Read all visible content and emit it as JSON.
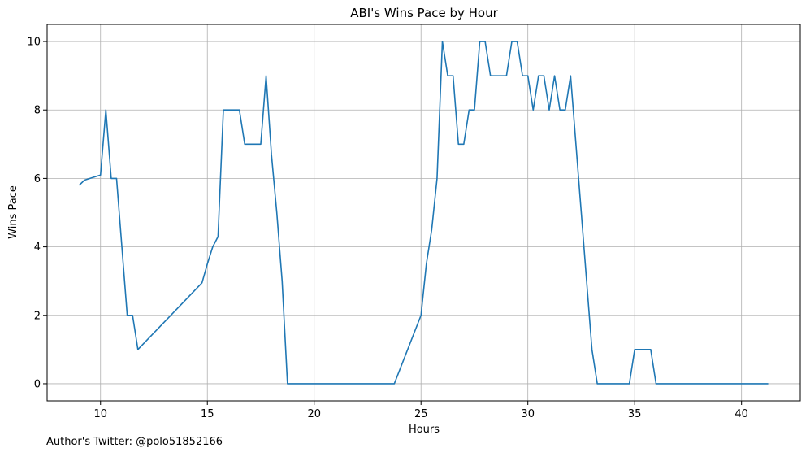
{
  "chart_data": {
    "type": "line",
    "title": "ABI's Wins Pace by Hour",
    "xlabel": "Hours",
    "ylabel": "Wins Pace",
    "xlim": [
      7.5,
      42.75
    ],
    "ylim": [
      -0.5,
      10.5
    ],
    "xticks": [
      10,
      15,
      20,
      25,
      30,
      35,
      40
    ],
    "yticks": [
      0,
      2,
      4,
      6,
      8,
      10
    ],
    "grid": true,
    "line_color": "#1f77b4",
    "series": [
      {
        "x": [
          9.0,
          9.25,
          10.0,
          10.25,
          10.5,
          10.75,
          11.0,
          11.25,
          11.5,
          11.75,
          14.75,
          15.0,
          15.25,
          15.5,
          15.75,
          16.0,
          16.5,
          16.75,
          17.25,
          17.5,
          17.75,
          18.0,
          18.25,
          18.5,
          18.75,
          23.75,
          25.0,
          25.25,
          25.5,
          25.75,
          26.0,
          26.25,
          26.5,
          26.75,
          27.0,
          27.25,
          27.5,
          27.75,
          28.0,
          28.25,
          28.5,
          28.75,
          29.0,
          29.25,
          29.5,
          29.75,
          30.0,
          30.25,
          30.5,
          30.75,
          31.0,
          31.25,
          31.5,
          31.75,
          32.0,
          32.25,
          32.5,
          32.75,
          33.0,
          33.25,
          34.75,
          35.0,
          35.25,
          35.75,
          36.0,
          41.25
        ],
        "values": [
          5.8,
          5.95,
          6.1,
          8.0,
          6.0,
          6.0,
          4.0,
          2.0,
          2.0,
          1.0,
          2.95,
          3.5,
          4.0,
          4.3,
          8.0,
          8.0,
          8.0,
          7.0,
          7.0,
          7.0,
          9.0,
          6.7,
          5.0,
          3.0,
          0.0,
          0.0,
          2.0,
          3.5,
          4.5,
          6.0,
          10.0,
          9.0,
          9.0,
          7.0,
          7.0,
          8.0,
          8.0,
          10.0,
          10.0,
          9.0,
          9.0,
          9.0,
          9.0,
          10.0,
          10.0,
          9.0,
          9.0,
          8.0,
          9.0,
          9.0,
          8.0,
          9.0,
          8.0,
          8.0,
          9.0,
          7.0,
          5.0,
          3.0,
          1.0,
          0.0,
          0.0,
          1.0,
          1.0,
          1.0,
          0.0,
          0.0
        ]
      }
    ]
  },
  "footer": {
    "text": "Author's Twitter: @polo51852166"
  }
}
